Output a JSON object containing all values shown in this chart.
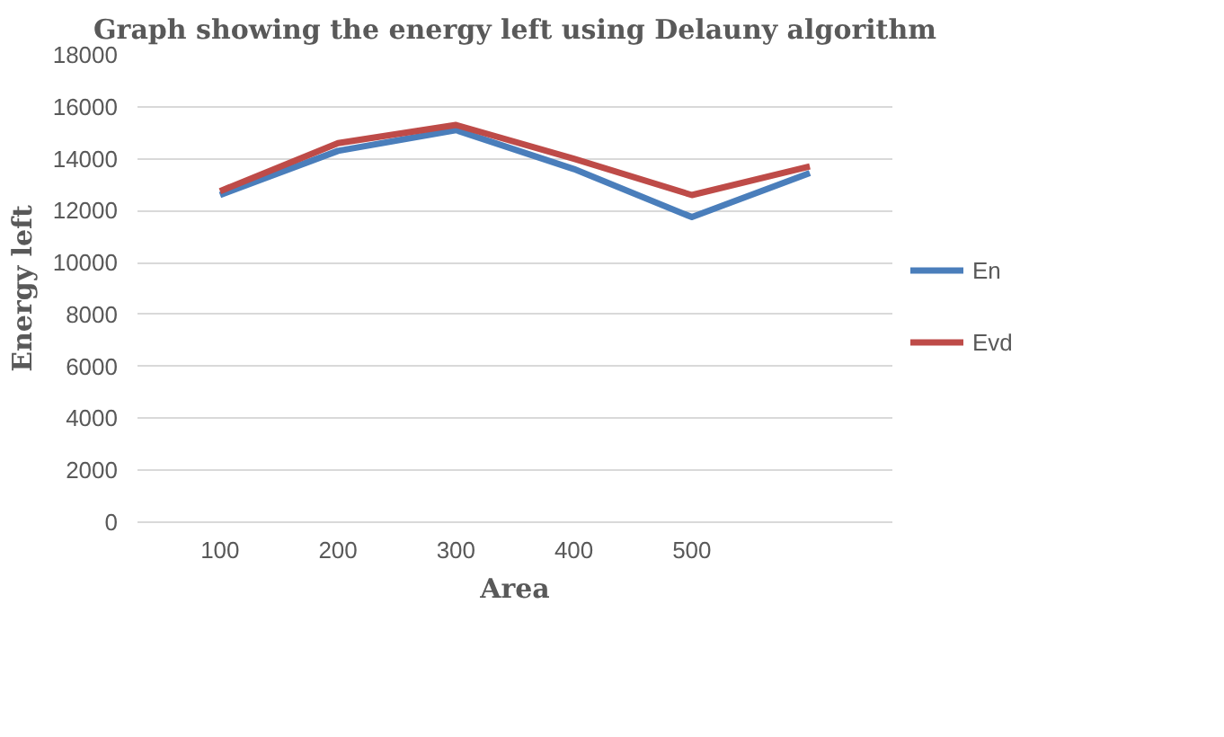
{
  "chart_data": {
    "type": "line",
    "title": "Graph showing the energy left using Delauny algorithm",
    "xlabel": "Area",
    "ylabel": "Energy left",
    "categories": [
      "100",
      "200",
      "300",
      "400",
      "500",
      null
    ],
    "series": [
      {
        "name": "En",
        "color": "#4a7ebb",
        "values": [
          12600,
          14300,
          15100,
          13600,
          11750,
          13450
        ]
      },
      {
        "name": "Evd",
        "color": "#be4b48",
        "values": [
          12750,
          14600,
          15300,
          14000,
          12600,
          13700
        ]
      }
    ],
    "ylim": [
      0,
      18000
    ],
    "yticks": [
      0,
      2000,
      4000,
      6000,
      8000,
      10000,
      12000,
      14000,
      16000,
      18000
    ],
    "grid": "y",
    "legend": "right",
    "marker": "none",
    "line_style": "solid"
  }
}
